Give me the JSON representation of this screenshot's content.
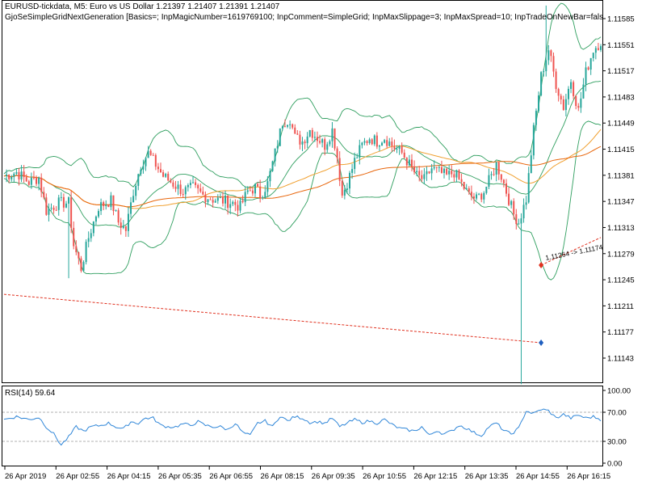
{
  "header": {
    "title": "EURUSD-tickdata, M5:  Euro vs US Dollar  1.21397 1.21407 1.21391 1.21407",
    "ea_params": "GjoSeSimpleGridNextGeneration [Basics=; InpMagicNumber=1619769100; InpComment=SimpleGrid; InpMaxSlippage=3; InpMaxSpread=10; InpTradeOnNewBar=false; InpNex"
  },
  "colors": {
    "bull": "#26a69a",
    "bear": "#ef5350",
    "bollinger": "#2e9e5e",
    "ma_slow": "#e8660c",
    "ma_medium": "#f0a030",
    "rsi": "#2f86d8",
    "trade_line": "#e0301e",
    "buy_marker": "#1f5fbf",
    "sell_marker": "#e0301e"
  },
  "chart_data": [
    {
      "type": "candlestick",
      "symbol": "EURUSD-tickdata",
      "timeframe": "M5",
      "ylim": [
        1.11109,
        1.11602
      ],
      "y_ticks": [
        "1.11585",
        "1.11551",
        "1.11517",
        "1.11483",
        "1.11449",
        "1.11415",
        "1.11381",
        "1.11347",
        "1.11313",
        "1.11279",
        "1.11245",
        "1.11211",
        "1.11177",
        "1.11143"
      ],
      "x_ticks": [
        "26 Apr 2019",
        "26 Apr 02:55",
        "26 Apr 04:15",
        "26 Apr 05:35",
        "26 Apr 06:55",
        "26 Apr 08:15",
        "26 Apr 09:35",
        "26 Apr 10:55",
        "26 Apr 12:15",
        "26 Apr 13:35",
        "26 Apr 14:55",
        "26 Apr 16:15"
      ],
      "close_path": [
        [
          0,
          1.1138
        ],
        [
          5,
          1.11385
        ],
        [
          10,
          1.11372
        ],
        [
          14,
          1.11378
        ],
        [
          17,
          1.11335
        ],
        [
          22,
          1.11345
        ],
        [
          26,
          1.11345
        ],
        [
          28,
          1.1129
        ],
        [
          31,
          1.1126
        ],
        [
          34,
          1.113
        ],
        [
          38,
          1.1134
        ],
        [
          43,
          1.11348
        ],
        [
          46,
          1.1132
        ],
        [
          49,
          1.1131
        ],
        [
          52,
          1.1136
        ],
        [
          55,
          1.11395
        ],
        [
          58,
          1.1141
        ],
        [
          61,
          1.11395
        ],
        [
          64,
          1.1138
        ],
        [
          68,
          1.1137
        ],
        [
          72,
          1.1136
        ],
        [
          76,
          1.11365
        ],
        [
          80,
          1.11355
        ],
        [
          84,
          1.1135
        ],
        [
          88,
          1.11348
        ],
        [
          92,
          1.11345
        ],
        [
          95,
          1.1134
        ],
        [
          98,
          1.1136
        ],
        [
          101,
          1.11365
        ],
        [
          103,
          1.11355
        ],
        [
          106,
          1.1137
        ],
        [
          109,
          1.1141
        ],
        [
          112,
          1.1145
        ],
        [
          115,
          1.11455
        ],
        [
          117,
          1.1143
        ],
        [
          120,
          1.11425
        ],
        [
          123,
          1.1144
        ],
        [
          126,
          1.1143
        ],
        [
          129,
          1.1142
        ],
        [
          132,
          1.1144
        ],
        [
          134,
          1.11405
        ],
        [
          136,
          1.11355
        ],
        [
          139,
          1.1138
        ],
        [
          141,
          1.114
        ],
        [
          144,
          1.1142
        ],
        [
          147,
          1.1143
        ],
        [
          150,
          1.11425
        ],
        [
          153,
          1.1143
        ],
        [
          156,
          1.1142
        ],
        [
          160,
          1.1141
        ],
        [
          163,
          1.11395
        ],
        [
          166,
          1.1138
        ],
        [
          169,
          1.11375
        ],
        [
          172,
          1.1139
        ],
        [
          175,
          1.11385
        ],
        [
          178,
          1.1138
        ],
        [
          181,
          1.11385
        ],
        [
          184,
          1.1137
        ],
        [
          187,
          1.11355
        ],
        [
          190,
          1.1135
        ],
        [
          193,
          1.1136
        ],
        [
          196,
          1.1138
        ],
        [
          198,
          1.11395
        ],
        [
          200,
          1.1138
        ],
        [
          203,
          1.1135
        ],
        [
          205,
          1.1133
        ],
        [
          207,
          1.1132
        ],
        [
          210,
          1.1135
        ],
        [
          213,
          1.1144
        ],
        [
          216,
          1.1151
        ],
        [
          219,
          1.11545
        ],
        [
          222,
          1.115
        ],
        [
          225,
          1.1147
        ],
        [
          228,
          1.11505
        ],
        [
          231,
          1.11465
        ],
        [
          234,
          1.11515
        ],
        [
          237,
          1.11545
        ],
        [
          240,
          1.11555
        ]
      ],
      "min_low": 1.11109,
      "max_high": 1.11602
    },
    {
      "type": "line",
      "name": "RSI(14) 59.64",
      "value": 59.64,
      "ylim": [
        0,
        100
      ],
      "y_ticks": [
        "100.00",
        "70.00",
        "30.00",
        "0.00"
      ],
      "levels": [
        70,
        30
      ],
      "values": [
        [
          0,
          60
        ],
        [
          5,
          64
        ],
        [
          10,
          60
        ],
        [
          14,
          63
        ],
        [
          17,
          50
        ],
        [
          20,
          40
        ],
        [
          23,
          25
        ],
        [
          26,
          36
        ],
        [
          29,
          50
        ],
        [
          32,
          44
        ],
        [
          35,
          50
        ],
        [
          39,
          52
        ],
        [
          42,
          55
        ],
        [
          45,
          50
        ],
        [
          48,
          47
        ],
        [
          51,
          57
        ],
        [
          54,
          55
        ],
        [
          57,
          62
        ],
        [
          60,
          62
        ],
        [
          63,
          52
        ],
        [
          66,
          50
        ],
        [
          69,
          50
        ],
        [
          72,
          54
        ],
        [
          75,
          52
        ],
        [
          78,
          57
        ],
        [
          81,
          52
        ],
        [
          84,
          50
        ],
        [
          87,
          50
        ],
        [
          90,
          46
        ],
        [
          93,
          55
        ],
        [
          96,
          42
        ],
        [
          99,
          38
        ],
        [
          102,
          55
        ],
        [
          105,
          58
        ],
        [
          108,
          50
        ],
        [
          111,
          65
        ],
        [
          114,
          58
        ],
        [
          117,
          64
        ],
        [
          120,
          62
        ],
        [
          123,
          56
        ],
        [
          126,
          57
        ],
        [
          129,
          55
        ],
        [
          132,
          62
        ],
        [
          135,
          50
        ],
        [
          138,
          55
        ],
        [
          141,
          60
        ],
        [
          144,
          56
        ],
        [
          147,
          58
        ],
        [
          150,
          55
        ],
        [
          153,
          60
        ],
        [
          156,
          53
        ],
        [
          159,
          48
        ],
        [
          162,
          46
        ],
        [
          165,
          44
        ],
        [
          168,
          50
        ],
        [
          171,
          38
        ],
        [
          174,
          45
        ],
        [
          177,
          40
        ],
        [
          180,
          44
        ],
        [
          183,
          52
        ],
        [
          186,
          48
        ],
        [
          189,
          42
        ],
        [
          192,
          38
        ],
        [
          195,
          50
        ],
        [
          198,
          55
        ],
        [
          201,
          45
        ],
        [
          204,
          40
        ],
        [
          207,
          48
        ],
        [
          210,
          72
        ],
        [
          213,
          68
        ],
        [
          216,
          74
        ],
        [
          219,
          72
        ],
        [
          222,
          62
        ],
        [
          225,
          67
        ],
        [
          228,
          62
        ],
        [
          231,
          66
        ],
        [
          234,
          62
        ],
        [
          237,
          64
        ],
        [
          240,
          60
        ]
      ]
    }
  ],
  "trade": {
    "label": "1.11264 -> 1.11174"
  }
}
